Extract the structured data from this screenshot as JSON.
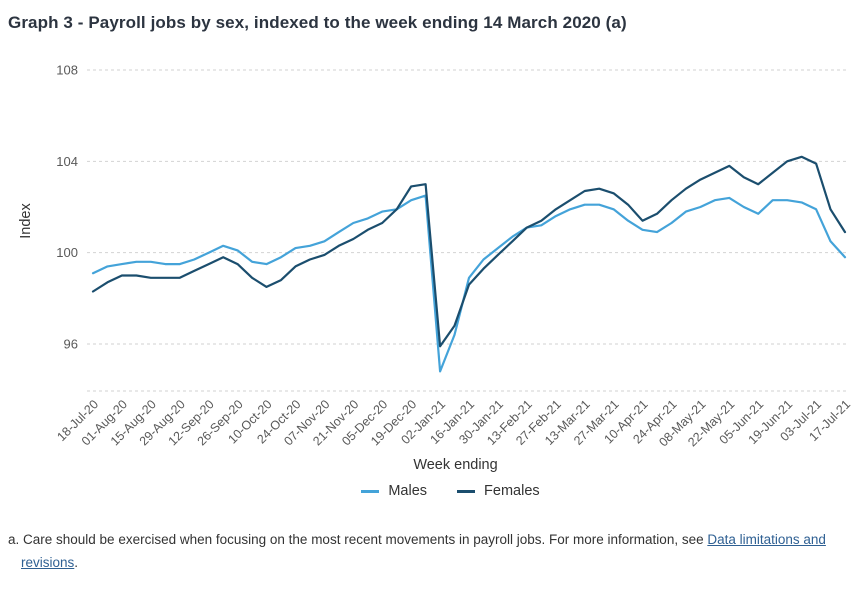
{
  "page": {
    "title": "Graph 3 - Payroll jobs by sex, indexed to the week ending 14 March 2020 (a)",
    "footnote": {
      "prefix": "a. Care should be exercised when focusing on the most recent movements in payroll jobs. For more information, see ",
      "link_text": "Data limitations and revisions",
      "suffix": "."
    }
  },
  "colors": {
    "males_line": "#44a3d9",
    "females_line": "#1b4e6e",
    "axis_text": "#595959",
    "gridline": "#d2d2d2",
    "link": "#2f6093"
  },
  "chart_data": {
    "type": "line",
    "title": "Payroll jobs by sex, indexed to the week ending 14 March 2020",
    "xlabel": "Week ending",
    "ylabel": "Index",
    "yticks": [
      96,
      100,
      104,
      108
    ],
    "ylim": [
      94,
      108
    ],
    "grid": "horizontal-dashed",
    "legend_position": "bottom",
    "points_per_tick": 2,
    "x_tick_labels": [
      "18-Jul-20",
      "01-Aug-20",
      "15-Aug-20",
      "29-Aug-20",
      "12-Sep-20",
      "26-Sep-20",
      "10-Oct-20",
      "24-Oct-20",
      "07-Nov-20",
      "21-Nov-20",
      "05-Dec-20",
      "19-Dec-20",
      "02-Jan-21",
      "16-Jan-21",
      "30-Jan-21",
      "13-Feb-21",
      "27-Feb-21",
      "13-Mar-21",
      "27-Mar-21",
      "10-Apr-21",
      "24-Apr-21",
      "08-May-21",
      "22-May-21",
      "05-Jun-21",
      "19-Jun-21",
      "03-Jul-21",
      "17-Jul-21"
    ],
    "series": [
      {
        "name": "Males",
        "color": "#44a3d9",
        "values": [
          99.1,
          99.4,
          99.5,
          99.6,
          99.6,
          99.5,
          99.5,
          99.7,
          100.0,
          100.3,
          100.1,
          99.6,
          99.5,
          99.8,
          100.2,
          100.3,
          100.5,
          100.9,
          101.3,
          101.5,
          101.8,
          101.9,
          102.3,
          102.5,
          94.8,
          96.4,
          98.9,
          99.7,
          100.2,
          100.7,
          101.1,
          101.2,
          101.6,
          101.9,
          102.1,
          102.1,
          101.9,
          101.4,
          101.0,
          100.9,
          101.3,
          101.8,
          102.0,
          102.3,
          102.4,
          102.0,
          101.7,
          102.3,
          102.3,
          102.2,
          101.9,
          100.5,
          99.8
        ]
      },
      {
        "name": "Females",
        "color": "#1b4e6e",
        "values": [
          98.3,
          98.7,
          99.0,
          99.0,
          98.9,
          98.9,
          98.9,
          99.2,
          99.5,
          99.8,
          99.5,
          98.9,
          98.5,
          98.8,
          99.4,
          99.7,
          99.9,
          100.3,
          100.6,
          101.0,
          101.3,
          101.9,
          102.9,
          103.0,
          95.9,
          96.8,
          98.6,
          99.3,
          99.9,
          100.5,
          101.1,
          101.4,
          101.9,
          102.3,
          102.7,
          102.8,
          102.6,
          102.1,
          101.4,
          101.7,
          102.3,
          102.8,
          103.2,
          103.5,
          103.8,
          103.3,
          103.0,
          103.5,
          104.0,
          104.2,
          103.9,
          101.9,
          100.9
        ]
      }
    ]
  }
}
